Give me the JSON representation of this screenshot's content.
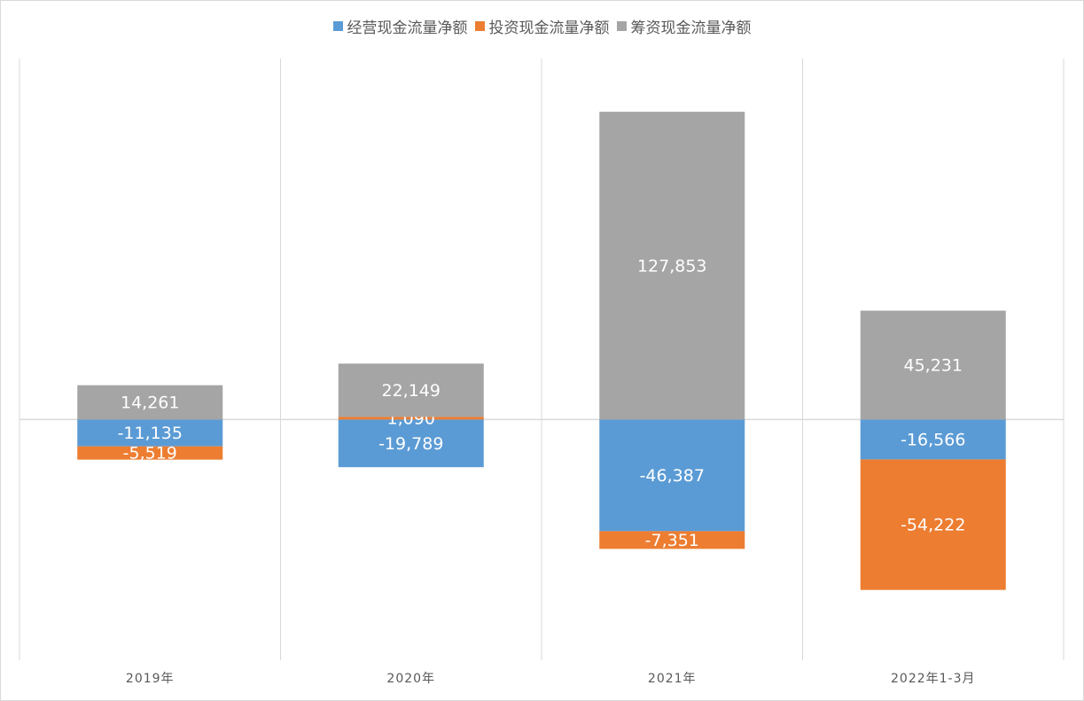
{
  "chart_data": {
    "type": "bar",
    "stacked": true,
    "categories": [
      "2019年",
      "2020年",
      "2021年",
      "2022年1-3月"
    ],
    "series": [
      {
        "name": "经营现金流量净额",
        "color": "#5b9bd5",
        "values": [
          -11135,
          -19789,
          -46387,
          -16566
        ],
        "value_labels": [
          "-11,135",
          "-19,789",
          "-46,387",
          "-16,566"
        ]
      },
      {
        "name": "投资现金流量净额",
        "color": "#ed7d31",
        "values": [
          -5519,
          1090,
          -7351,
          -54222
        ],
        "value_labels": [
          "-5,519",
          "1,090",
          "-7,351",
          "-54,222"
        ]
      },
      {
        "name": "筹资现金流量净额",
        "color": "#a5a5a5",
        "values": [
          14261,
          22149,
          127853,
          45231
        ],
        "value_labels": [
          "14,261",
          "22,149",
          "127,853",
          "45,231"
        ]
      }
    ],
    "ylim": [
      -100000,
      150000
    ],
    "legend": "top",
    "grid": true
  }
}
